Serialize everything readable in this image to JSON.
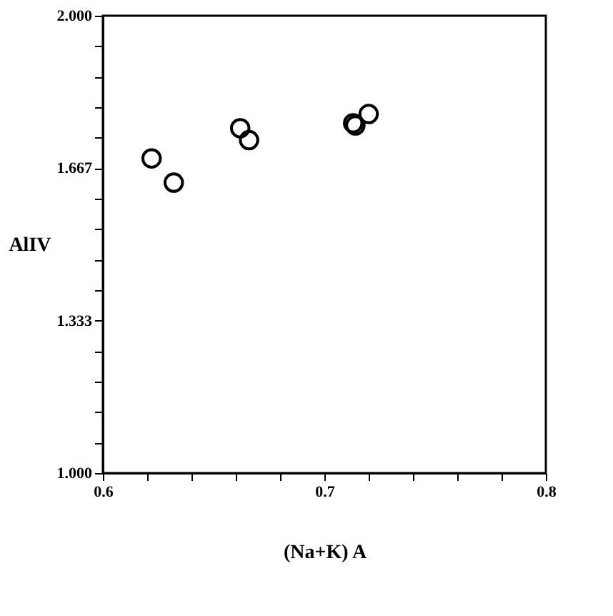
{
  "chart_data": {
    "type": "scatter",
    "xlabel": "(Na+K) A",
    "ylabel": "AlIV",
    "x": [
      0.622,
      0.632,
      0.662,
      0.666,
      0.713,
      0.714,
      0.72
    ],
    "series": [
      {
        "color": "#000000",
        "values": [
          1.688,
          1.635,
          1.754,
          1.728,
          1.765,
          1.76,
          1.785
        ]
      }
    ],
    "marker": "circle",
    "grid": false,
    "legend": false,
    "xlim": [
      0.6,
      0.8
    ],
    "ylim": [
      1.0,
      2.0
    ],
    "xticks": [
      0.6,
      {
        "value": 0.62,
        "label": null
      },
      {
        "value": 0.64,
        "label": null
      },
      {
        "value": 0.66,
        "label": null
      },
      {
        "value": 0.68,
        "label": null
      },
      0.7,
      {
        "value": 0.72,
        "label": null
      },
      {
        "value": 0.74,
        "label": null
      },
      {
        "value": 0.76,
        "label": null
      },
      {
        "value": 0.78,
        "label": null
      },
      0.8
    ],
    "yticks": [
      {
        "value": 1.0,
        "label": "1.000"
      },
      {
        "value": 1.0667,
        "label": null
      },
      {
        "value": 1.1333,
        "label": null
      },
      {
        "value": 1.2,
        "label": null
      },
      {
        "value": 1.2667,
        "label": null
      },
      1.333,
      {
        "value": 1.4,
        "label": null
      },
      {
        "value": 1.4667,
        "label": null
      },
      {
        "value": 1.5333,
        "label": null
      },
      {
        "value": 1.6,
        "label": null
      },
      1.667,
      {
        "value": 1.7333,
        "label": null
      },
      {
        "value": 1.8,
        "label": null
      },
      {
        "value": 1.8667,
        "label": null
      },
      {
        "value": 1.9333,
        "label": null
      },
      {
        "value": 2.0,
        "label": "2.000"
      }
    ]
  }
}
